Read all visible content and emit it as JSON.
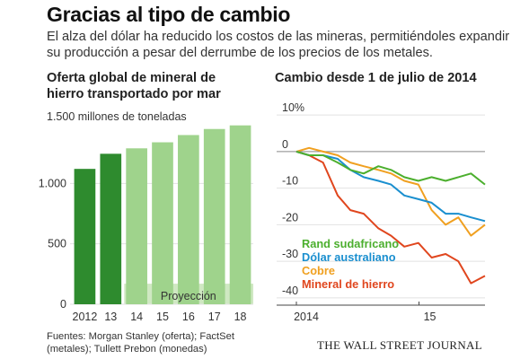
{
  "title": "Gracias al tipo de cambio",
  "subtitle": "El alza del dólar ha reducido los costos de las mineras, permitiéndoles expandir su producción a pesar del derrumbe de los precios de los metales.",
  "source": "Fuentes: Morgan Stanley (oferta); FactSet (metales); Tullett Prebon (monedas)",
  "publisher": "THE WALL STREET JOURNAL",
  "chart_data": [
    {
      "type": "bar",
      "title": "Oferta global de mineral de hierro transportado por mar",
      "ylabel": "1.500 millones de toneladas",
      "categories": [
        "2012",
        "13",
        "14",
        "15",
        "16",
        "17",
        "18"
      ],
      "values": [
        1120,
        1245,
        1290,
        1340,
        1400,
        1450,
        1480
      ],
      "projected": [
        false,
        false,
        true,
        true,
        true,
        true,
        true
      ],
      "projection_label": "Proyección",
      "yticks": [
        0,
        500,
        1000
      ],
      "ytick_labels": [
        "0",
        "500",
        "1.000"
      ],
      "ylim": [
        0,
        1500
      ],
      "colors": {
        "actual": "#2e8b2e",
        "projected": "#9fd38c",
        "projection_band": "#cfe8c2"
      }
    },
    {
      "type": "line",
      "title": "Cambio desde 1 de julio de 2014",
      "ylabel": "%",
      "xlabels": [
        "2014",
        "15"
      ],
      "x_domain": [
        "2014-07-01",
        "2015-04-10"
      ],
      "yticks": [
        10,
        0,
        -10,
        -20,
        -30,
        -40
      ],
      "ytick_labels": [
        "10%",
        "0",
        "-10",
        "-20",
        "-30",
        "-40"
      ],
      "ylim": [
        -42,
        12
      ],
      "series": [
        {
          "name": "Rand sudafricano",
          "color": "#4caf2e",
          "x": [
            "2014-07-01",
            "2014-07-20",
            "2014-08-10",
            "2014-09-01",
            "2014-09-20",
            "2014-10-10",
            "2014-11-01",
            "2014-11-20",
            "2014-12-10",
            "2014-12-31",
            "2015-01-20",
            "2015-02-10",
            "2015-03-01",
            "2015-03-20",
            "2015-04-10"
          ],
          "values": [
            0,
            -1,
            -1,
            -3,
            -5,
            -6,
            -4,
            -5,
            -7,
            -8,
            -7,
            -8,
            -7,
            -6,
            -9
          ]
        },
        {
          "name": "Dólar australiano",
          "color": "#1a8fcf",
          "x": [
            "2014-07-01",
            "2014-07-20",
            "2014-08-10",
            "2014-09-01",
            "2014-09-20",
            "2014-10-10",
            "2014-11-01",
            "2014-11-20",
            "2014-12-10",
            "2014-12-31",
            "2015-01-20",
            "2015-02-10",
            "2015-03-01",
            "2015-03-20",
            "2015-04-10"
          ],
          "values": [
            0,
            -1,
            -1,
            -2,
            -5,
            -7,
            -8,
            -9,
            -12,
            -13,
            -14,
            -17,
            -17,
            -18,
            -19
          ]
        },
        {
          "name": "Cobre",
          "color": "#f0a020",
          "x": [
            "2014-07-01",
            "2014-07-20",
            "2014-08-10",
            "2014-09-01",
            "2014-09-20",
            "2014-10-10",
            "2014-11-01",
            "2014-11-20",
            "2014-12-10",
            "2014-12-31",
            "2015-01-20",
            "2015-02-10",
            "2015-03-01",
            "2015-03-20",
            "2015-04-10"
          ],
          "values": [
            0,
            1,
            0,
            -1,
            -3,
            -4,
            -5,
            -6,
            -8,
            -9,
            -16,
            -20,
            -18,
            -23,
            -20
          ]
        },
        {
          "name": "Mineral de hierro",
          "color": "#e0461e",
          "x": [
            "2014-07-01",
            "2014-07-20",
            "2014-08-10",
            "2014-09-01",
            "2014-09-20",
            "2014-10-10",
            "2014-11-01",
            "2014-11-20",
            "2014-12-10",
            "2014-12-31",
            "2015-01-20",
            "2015-02-10",
            "2015-03-01",
            "2015-03-20",
            "2015-04-10"
          ],
          "values": [
            0,
            -1,
            -3,
            -12,
            -16,
            -17,
            -21,
            -23,
            -26,
            -25,
            -29,
            -28,
            -30,
            -36,
            -34
          ]
        }
      ]
    }
  ]
}
